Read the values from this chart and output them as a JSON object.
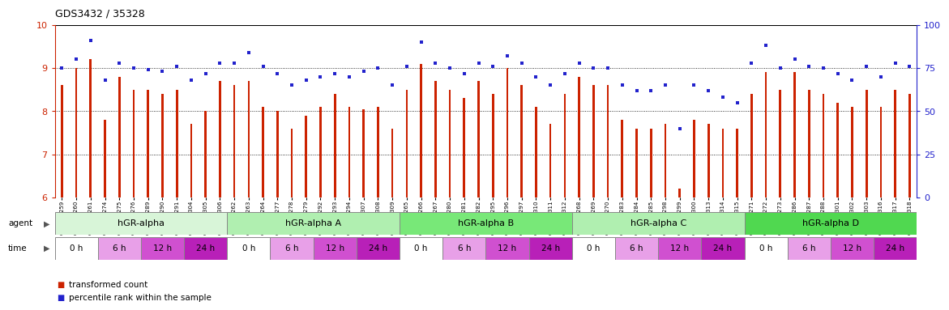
{
  "title": "GDS3432 / 35328",
  "samples": [
    "GSM154259",
    "GSM154260",
    "GSM154261",
    "GSM154274",
    "GSM154275",
    "GSM154276",
    "GSM154289",
    "GSM154290",
    "GSM154291",
    "GSM154304",
    "GSM154305",
    "GSM154306",
    "GSM154262",
    "GSM154263",
    "GSM154264",
    "GSM154277",
    "GSM154278",
    "GSM154279",
    "GSM154292",
    "GSM154293",
    "GSM154294",
    "GSM154307",
    "GSM154308",
    "GSM154309",
    "GSM154265",
    "GSM154266",
    "GSM154267",
    "GSM154280",
    "GSM154281",
    "GSM154282",
    "GSM154295",
    "GSM154296",
    "GSM154297",
    "GSM154310",
    "GSM154311",
    "GSM154312",
    "GSM154268",
    "GSM154269",
    "GSM154270",
    "GSM154283",
    "GSM154284",
    "GSM154285",
    "GSM154298",
    "GSM154299",
    "GSM154300",
    "GSM154313",
    "GSM154314",
    "GSM154315",
    "GSM154271",
    "GSM154272",
    "GSM154273",
    "GSM154286",
    "GSM154287",
    "GSM154288",
    "GSM154301",
    "GSM154302",
    "GSM154303",
    "GSM154316",
    "GSM154317",
    "GSM154318"
  ],
  "bar_values": [
    8.6,
    9.0,
    9.2,
    7.8,
    8.8,
    8.5,
    8.5,
    8.4,
    8.5,
    7.7,
    8.0,
    8.7,
    8.6,
    8.7,
    8.1,
    8.0,
    7.6,
    7.9,
    8.1,
    8.4,
    8.1,
    8.05,
    8.1,
    7.6,
    8.5,
    9.1,
    8.7,
    8.5,
    8.3,
    8.7,
    8.4,
    9.0,
    8.6,
    8.1,
    7.7,
    8.4,
    8.8,
    8.6,
    8.6,
    7.8,
    7.6,
    7.6,
    7.7,
    6.2,
    7.8,
    7.7,
    7.6,
    7.6,
    8.4,
    8.9,
    8.5,
    8.9,
    8.5,
    8.4,
    8.2,
    8.1,
    8.5,
    8.1,
    8.5,
    8.4
  ],
  "dot_values": [
    75,
    80,
    91,
    68,
    78,
    75,
    74,
    73,
    76,
    68,
    72,
    78,
    78,
    84,
    76,
    72,
    65,
    68,
    70,
    72,
    70,
    73,
    75,
    65,
    76,
    90,
    78,
    75,
    72,
    78,
    76,
    82,
    78,
    70,
    65,
    72,
    78,
    75,
    75,
    65,
    62,
    62,
    65,
    40,
    65,
    62,
    58,
    55,
    78,
    88,
    75,
    80,
    76,
    75,
    72,
    68,
    76,
    70,
    78,
    76
  ],
  "ylim_left": [
    6,
    10
  ],
  "ylim_right": [
    0,
    100
  ],
  "yticks_left": [
    6,
    7,
    8,
    9,
    10
  ],
  "yticks_right": [
    0,
    25,
    50,
    75,
    100
  ],
  "agent_groups": [
    {
      "label": "hGR-alpha",
      "start": 0,
      "end": 12,
      "color": "#d8f5d8"
    },
    {
      "label": "hGR-alpha A",
      "start": 12,
      "end": 24,
      "color": "#b0efb0"
    },
    {
      "label": "hGR-alpha B",
      "start": 24,
      "end": 36,
      "color": "#78e878"
    },
    {
      "label": "hGR-alpha C",
      "start": 36,
      "end": 48,
      "color": "#b0efb0"
    },
    {
      "label": "hGR-alpha D",
      "start": 48,
      "end": 60,
      "color": "#50d850"
    }
  ],
  "time_labels": [
    "0 h",
    "6 h",
    "12 h",
    "24 h"
  ],
  "time_colors": [
    "#ffffff",
    "#e8a0e8",
    "#d050d0",
    "#b820b8"
  ],
  "bar_color": "#cc2200",
  "dot_color": "#2222cc",
  "bar_bottom": 6.0,
  "bar_width": 0.15,
  "dot_size": 8
}
